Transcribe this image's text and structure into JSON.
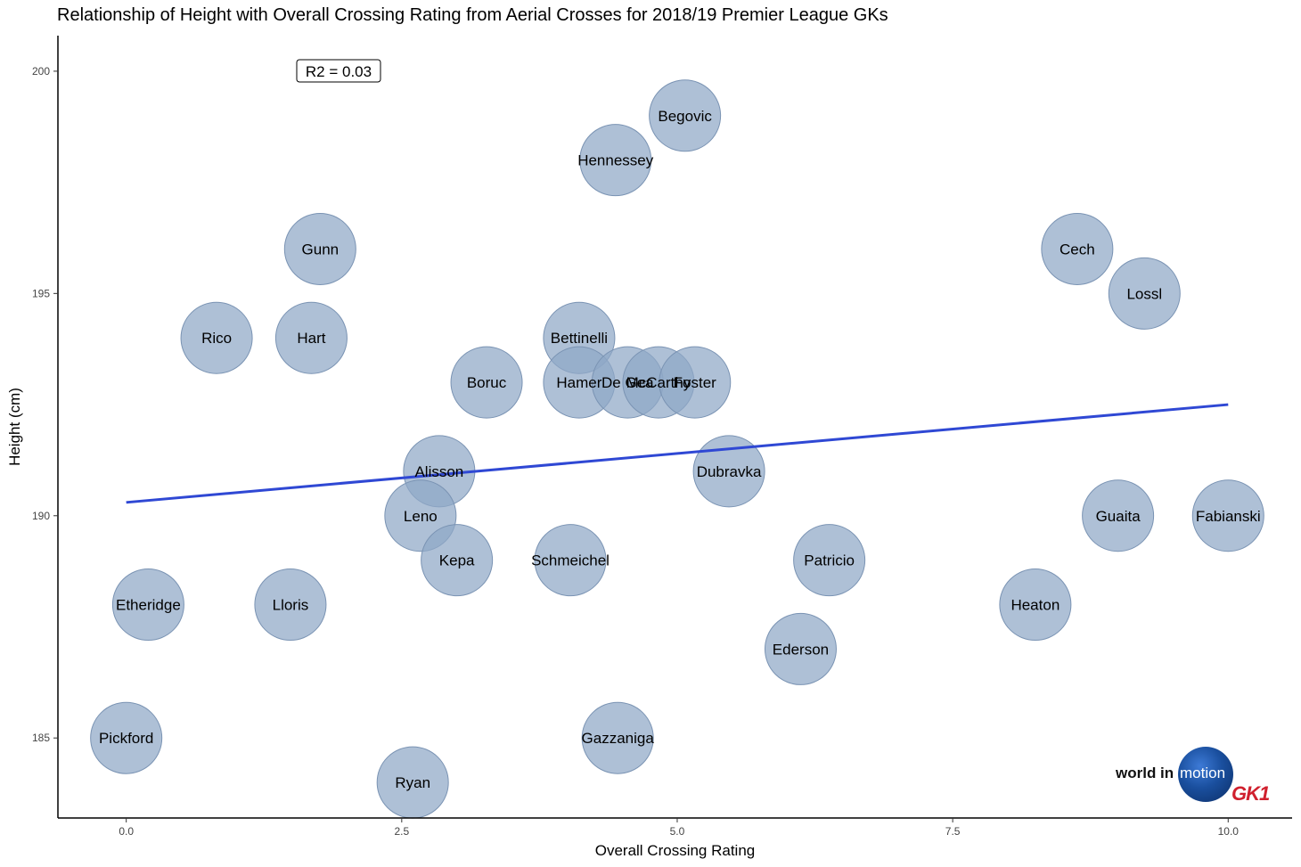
{
  "title": "Relationship of Height with Overall Crossing Rating from Aerial Crosses for 2018/19 Premier League GKs",
  "annotation": "R2 = 0.03",
  "logo": {
    "text": "world in",
    "highlight": "motion",
    "brand": "GK1",
    "brand_color": "#d0202e"
  },
  "colors": {
    "bubble_fill": "#8fa7c6",
    "bubble_stroke": "#7a93b3",
    "trend_line": "#2f48d4"
  },
  "chart_data": {
    "type": "scatter",
    "title": "Relationship of Height with Overall Crossing Rating from Aerial Crosses for 2018/19 Premier League GKs",
    "xlabel": "Overall Crossing Rating",
    "ylabel": "Height (cm)",
    "xlim": [
      -0.62,
      10.58
    ],
    "ylim": [
      183.2,
      200.8
    ],
    "xticks": [
      "0.0",
      "2.5",
      "5.0",
      "7.5",
      "10.0"
    ],
    "xtick_values": [
      0,
      2.5,
      5,
      7.5,
      10
    ],
    "yticks": [
      "185",
      "190",
      "195",
      "200"
    ],
    "ytick_values": [
      185,
      190,
      195,
      200
    ],
    "grid": false,
    "trend_line": {
      "x": [
        0,
        10
      ],
      "y": [
        190.3,
        192.5
      ]
    },
    "points": [
      {
        "name": "Begovic",
        "x": 5.07,
        "y": 199
      },
      {
        "name": "Hennessey",
        "x": 4.44,
        "y": 198
      },
      {
        "name": "Gunn",
        "x": 1.76,
        "y": 196
      },
      {
        "name": "Cech",
        "x": 8.63,
        "y": 196
      },
      {
        "name": "Lossl",
        "x": 9.24,
        "y": 195
      },
      {
        "name": "Rico",
        "x": 0.82,
        "y": 194
      },
      {
        "name": "Hart",
        "x": 1.68,
        "y": 194
      },
      {
        "name": "Bettinelli",
        "x": 4.11,
        "y": 194
      },
      {
        "name": "Boruc",
        "x": 3.27,
        "y": 193
      },
      {
        "name": "Hamer",
        "x": 4.11,
        "y": 193
      },
      {
        "name": "De Gea",
        "x": 4.55,
        "y": 193
      },
      {
        "name": "McCarthy",
        "x": 4.83,
        "y": 193
      },
      {
        "name": "Foster",
        "x": 5.16,
        "y": 193
      },
      {
        "name": "Alisson",
        "x": 2.84,
        "y": 191
      },
      {
        "name": "Dubravka",
        "x": 5.47,
        "y": 191
      },
      {
        "name": "Leno",
        "x": 2.67,
        "y": 190
      },
      {
        "name": "Guaita",
        "x": 9.0,
        "y": 190
      },
      {
        "name": "Fabianski",
        "x": 10.0,
        "y": 190
      },
      {
        "name": "Kepa",
        "x": 3.0,
        "y": 189
      },
      {
        "name": "Schmeichel",
        "x": 4.03,
        "y": 189
      },
      {
        "name": "Patricio",
        "x": 6.38,
        "y": 189
      },
      {
        "name": "Etheridge",
        "x": 0.2,
        "y": 188
      },
      {
        "name": "Lloris",
        "x": 1.49,
        "y": 188
      },
      {
        "name": "Heaton",
        "x": 8.25,
        "y": 188
      },
      {
        "name": "Ederson",
        "x": 6.12,
        "y": 187
      },
      {
        "name": "Pickford",
        "x": 0.0,
        "y": 185
      },
      {
        "name": "Gazzaniga",
        "x": 4.46,
        "y": 185
      },
      {
        "name": "Ryan",
        "x": 2.6,
        "y": 184
      }
    ]
  }
}
